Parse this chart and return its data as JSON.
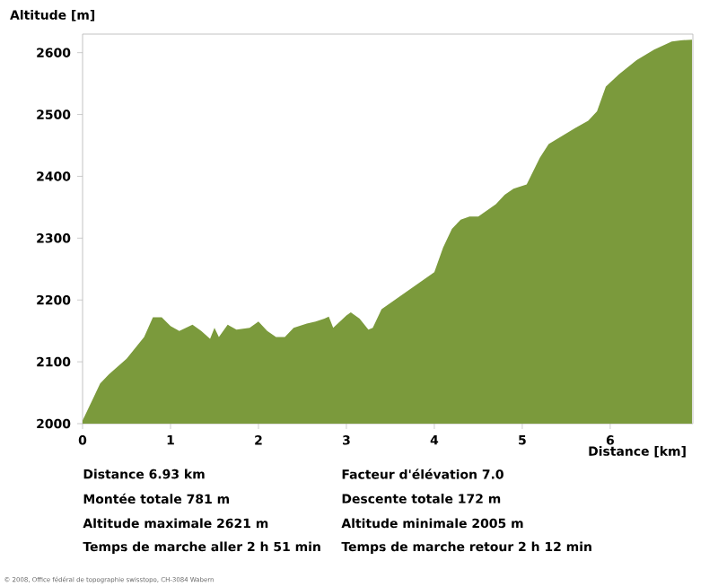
{
  "chart_data": {
    "type": "area",
    "xlabel": "Distance [km]",
    "ylabel": "Altitude [m]",
    "color": "#7b9a3c",
    "xlim": [
      0,
      6.94
    ],
    "ylim": [
      2000,
      2630
    ],
    "xticks": [
      0,
      1,
      2,
      3,
      4,
      5,
      6
    ],
    "yticks": [
      2000,
      2100,
      2200,
      2300,
      2400,
      2500,
      2600
    ],
    "x": [
      0,
      0.1,
      0.2,
      0.3,
      0.5,
      0.7,
      0.8,
      0.9,
      1.0,
      1.1,
      1.25,
      1.35,
      1.45,
      1.5,
      1.55,
      1.65,
      1.75,
      1.9,
      2.0,
      2.1,
      2.2,
      2.3,
      2.4,
      2.55,
      2.65,
      2.75,
      2.8,
      2.85,
      3.0,
      3.05,
      3.15,
      3.25,
      3.3,
      3.4,
      3.5,
      3.6,
      3.8,
      4.0,
      4.1,
      4.2,
      4.3,
      4.4,
      4.5,
      4.6,
      4.7,
      4.8,
      4.9,
      5.05,
      5.2,
      5.3,
      5.45,
      5.6,
      5.75,
      5.85,
      5.95,
      6.1,
      6.3,
      6.5,
      6.7,
      6.8,
      6.93
    ],
    "values": [
      2005,
      2035,
      2065,
      2080,
      2105,
      2140,
      2172,
      2172,
      2158,
      2150,
      2160,
      2150,
      2137,
      2155,
      2140,
      2160,
      2152,
      2155,
      2165,
      2150,
      2140,
      2140,
      2155,
      2162,
      2165,
      2170,
      2173,
      2155,
      2175,
      2180,
      2170,
      2152,
      2155,
      2185,
      2195,
      2205,
      2225,
      2245,
      2285,
      2315,
      2330,
      2335,
      2335,
      2345,
      2355,
      2370,
      2380,
      2387,
      2430,
      2452,
      2465,
      2478,
      2490,
      2505,
      2545,
      2565,
      2588,
      2605,
      2618,
      2620,
      2621
    ],
    "annotations": [
      "Distance 6.93 km",
      "Facteur d'élévation 7.0",
      "Montée totale  781 m",
      "Descente totale  172 m",
      "Altitude maximale  2621 m",
      "Altitude minimale  2005 m",
      "Temps de marche aller  2 h 51 min",
      "Temps de marche retour  2 h 12 min",
      "© 2008, Office fédéral de topographie swisstopo, CH-3084 Wabern"
    ]
  }
}
